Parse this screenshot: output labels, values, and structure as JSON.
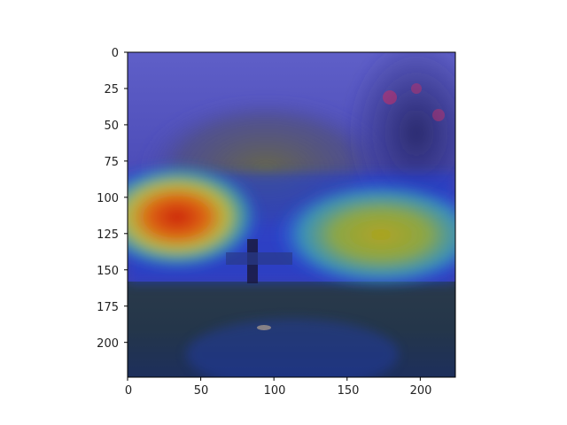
{
  "figure": {
    "type": "image-overlay",
    "x_ticks": [
      "0",
      "50",
      "100",
      "150",
      "200"
    ],
    "y_ticks": [
      "0",
      "25",
      "50",
      "75",
      "100",
      "125",
      "150",
      "175",
      "200"
    ],
    "x_tick_values": [
      0,
      50,
      100,
      150,
      200
    ],
    "y_tick_values": [
      0,
      25,
      50,
      75,
      100,
      125,
      150,
      175,
      200
    ],
    "xlim": [
      0,
      224
    ],
    "ylim": [
      224,
      0
    ]
  }
}
